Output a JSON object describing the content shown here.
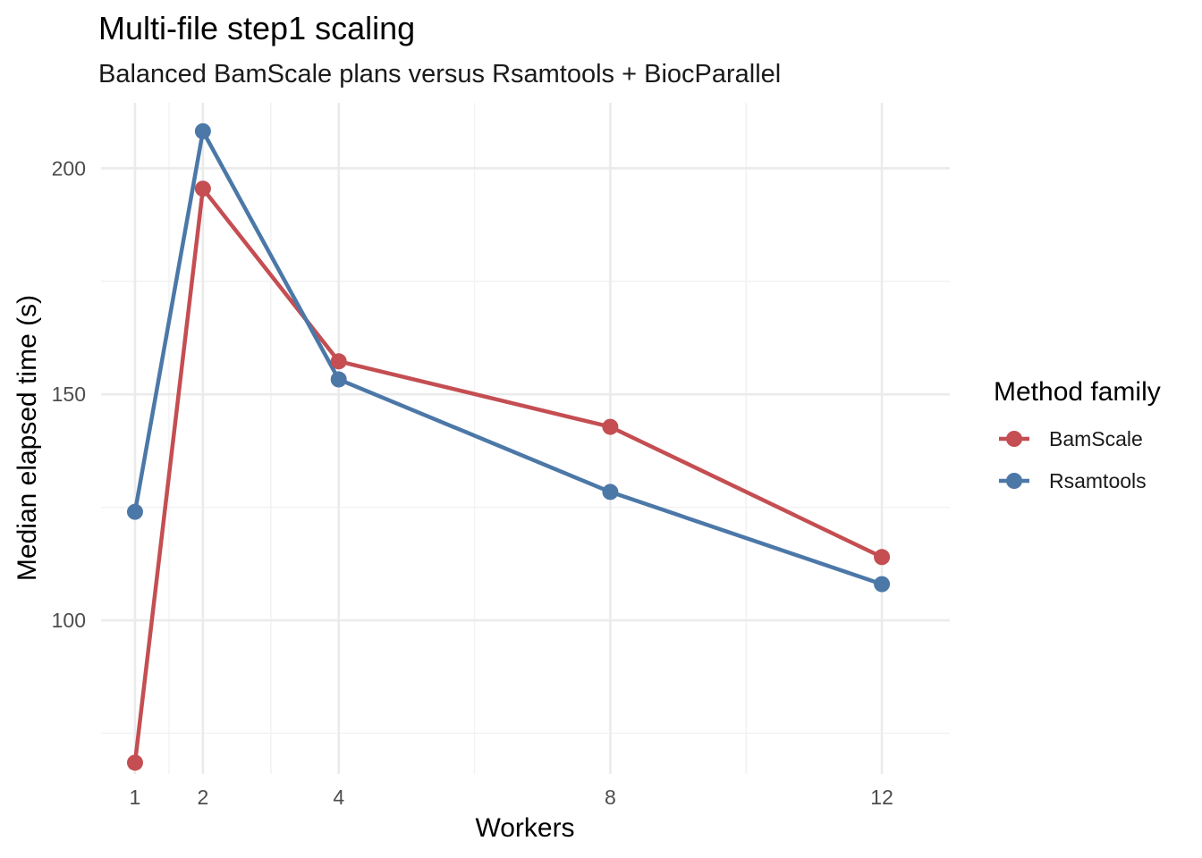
{
  "chart_data": {
    "type": "line",
    "title": "Multi-file step1 scaling",
    "subtitle": "Balanced BamScale plans versus Rsamtools + BiocParallel",
    "xlabel": "Workers",
    "ylabel": "Median elapsed time (s)",
    "x": [
      1,
      2,
      4,
      8,
      12
    ],
    "x_ticks": [
      1,
      2,
      4,
      8,
      12
    ],
    "y_ticks": [
      100,
      150,
      200
    ],
    "xlim": [
      0.5,
      13
    ],
    "ylim": [
      66,
      214.5
    ],
    "grid": true,
    "legend": {
      "title": "Method family",
      "position": "right"
    },
    "series": [
      {
        "name": "BamScale",
        "color": "#c44e52",
        "values": [
          68.5,
          195.5,
          157.3,
          142.8,
          114.0
        ]
      },
      {
        "name": "Rsamtools",
        "color": "#4c78a8",
        "values": [
          124.0,
          208.2,
          153.3,
          128.4,
          108.0
        ]
      }
    ]
  }
}
